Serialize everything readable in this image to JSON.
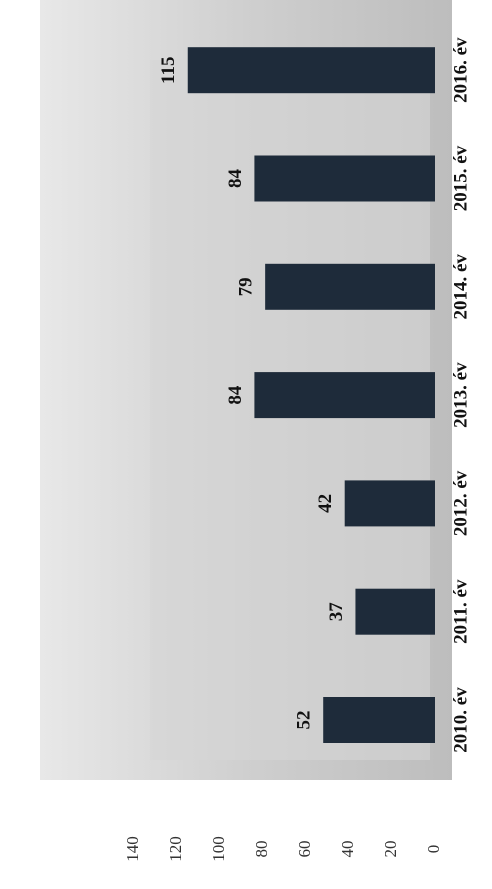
{
  "chart_data": {
    "type": "bar",
    "categories": [
      "2010. év",
      "2011. év",
      "2012. év",
      "2013. év",
      "2014. év",
      "2015. év",
      "2016. év"
    ],
    "values": [
      52,
      37,
      42,
      84,
      79,
      84,
      115
    ],
    "color": "#1e2b3a",
    "ylim": [
      0,
      140
    ],
    "yticks": [
      0,
      20,
      40,
      60,
      80,
      100,
      120,
      140
    ],
    "grid": false
  }
}
